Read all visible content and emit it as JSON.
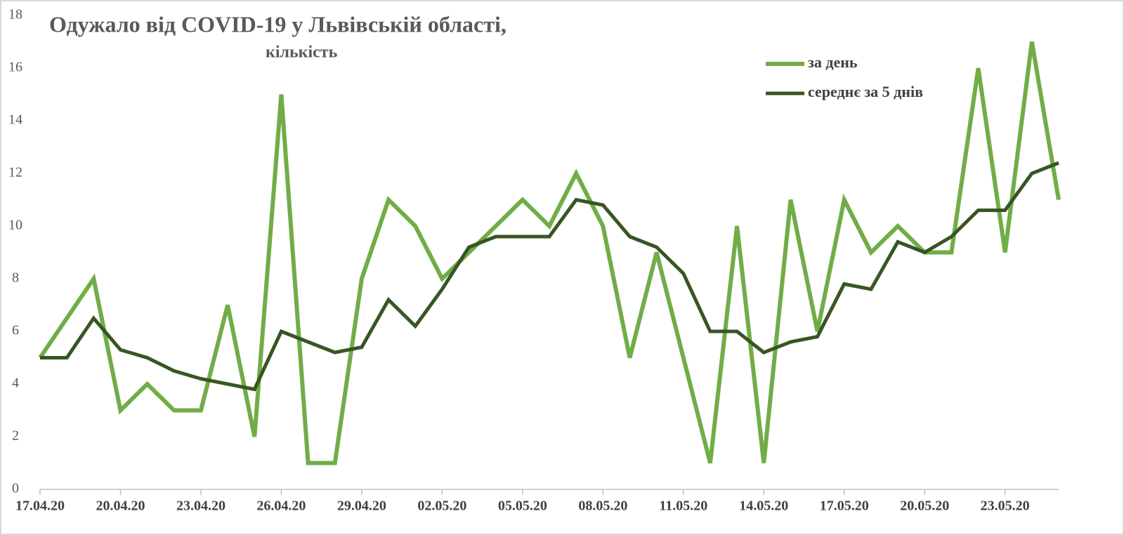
{
  "chart_data": {
    "type": "line",
    "title": "Одужало від COVID-19 у Львівській області,",
    "subtitle": "кількість",
    "categories": [
      "17.04.20",
      null,
      null,
      "20.04.20",
      null,
      null,
      "23.04.20",
      null,
      null,
      "26.04.20",
      null,
      null,
      "29.04.20",
      null,
      null,
      "02.05.20",
      null,
      null,
      "05.05.20",
      null,
      null,
      "08.05.20",
      null,
      null,
      "11.05.20",
      null,
      null,
      "14.05.20",
      null,
      null,
      "17.05.20",
      null,
      null,
      "20.05.20",
      null,
      null,
      "23.05.20",
      null,
      null
    ],
    "series": [
      {
        "name": "за день",
        "color": "#70ad47",
        "width": 6,
        "values": [
          5,
          6.5,
          8,
          3,
          4,
          3,
          3,
          7,
          2,
          15,
          1,
          1,
          8,
          11,
          10,
          8,
          9,
          10,
          11,
          10,
          12,
          10,
          5,
          9,
          5,
          1,
          10,
          1,
          11,
          6,
          11,
          9,
          10,
          9,
          9,
          16,
          9,
          17,
          11
        ]
      },
      {
        "name": "середнє за 5 днів",
        "color": "#375623",
        "width": 5,
        "values": [
          5,
          5,
          6.5,
          5.3,
          5,
          4.5,
          4.2,
          4,
          3.8,
          6,
          5.6,
          5.2,
          5.4,
          7.2,
          6.2,
          7.6,
          9.2,
          9.6,
          9.6,
          9.6,
          11,
          10.8,
          9.6,
          9.2,
          8.2,
          6,
          6,
          5.2,
          5.6,
          5.8,
          7.8,
          7.6,
          9.4,
          9,
          9.6,
          10.6,
          10.6,
          12,
          12.4
        ]
      }
    ],
    "ylim": [
      0,
      18
    ],
    "yticks": [
      0,
      2,
      4,
      6,
      8,
      10,
      12,
      14,
      16,
      18
    ],
    "grid": false
  }
}
